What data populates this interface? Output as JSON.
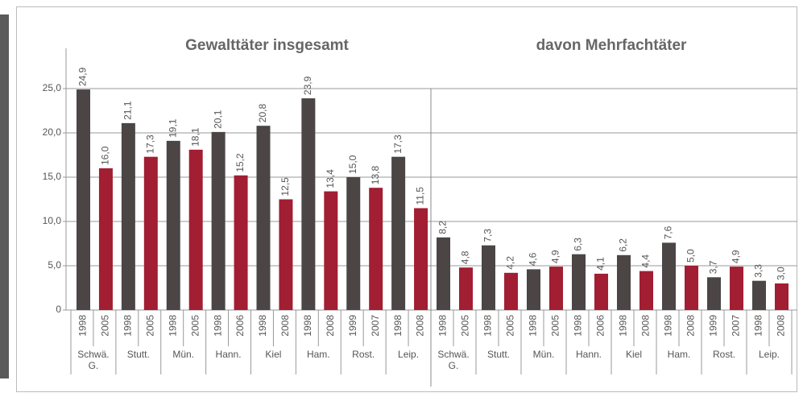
{
  "chart_data": {
    "type": "bar",
    "colors": [
      "#4b4546",
      "#a21e33"
    ],
    "ylim": [
      0,
      25
    ],
    "yticks": [
      {
        "value": 0,
        "label": "0"
      },
      {
        "value": 5,
        "label": "5,0"
      },
      {
        "value": 10,
        "label": "10,0"
      },
      {
        "value": 15,
        "label": "15,0"
      },
      {
        "value": 20,
        "label": "20,0"
      },
      {
        "value": 25,
        "label": "25,0"
      }
    ],
    "grid": true,
    "panels": [
      {
        "title": "Gewalttäter insgesamt",
        "groups": [
          {
            "label": "Schwä. G.",
            "years": [
              "1998",
              "2005"
            ],
            "values": [
              24.9,
              16.0
            ],
            "value_labels": [
              "24,9",
              "16,0"
            ]
          },
          {
            "label": "Stutt.",
            "years": [
              "1998",
              "2005"
            ],
            "values": [
              21.1,
              17.3
            ],
            "value_labels": [
              "21,1",
              "17,3"
            ]
          },
          {
            "label": "Mün.",
            "years": [
              "1998",
              "2005"
            ],
            "values": [
              19.1,
              18.1
            ],
            "value_labels": [
              "19,1",
              "18,1"
            ]
          },
          {
            "label": "Hann.",
            "years": [
              "1998",
              "2006"
            ],
            "values": [
              20.1,
              15.2
            ],
            "value_labels": [
              "20,1",
              "15,2"
            ]
          },
          {
            "label": "Kiel",
            "years": [
              "1998",
              "2008"
            ],
            "values": [
              20.8,
              12.5
            ],
            "value_labels": [
              "20,8",
              "12,5"
            ]
          },
          {
            "label": "Ham.",
            "years": [
              "1998",
              "2008"
            ],
            "values": [
              23.9,
              13.4
            ],
            "value_labels": [
              "23,9",
              "13,4"
            ]
          },
          {
            "label": "Rost.",
            "years": [
              "1999",
              "2007"
            ],
            "values": [
              15.0,
              13.8
            ],
            "value_labels": [
              "15,0",
              "13,8"
            ]
          },
          {
            "label": "Leip.",
            "years": [
              "1998",
              "2008"
            ],
            "values": [
              17.3,
              11.5
            ],
            "value_labels": [
              "17,3",
              "11,5"
            ]
          }
        ]
      },
      {
        "title": "davon Mehrfachtäter",
        "groups": [
          {
            "label": "Schwä. G.",
            "years": [
              "1998",
              "2005"
            ],
            "values": [
              8.2,
              4.8
            ],
            "value_labels": [
              "8,2",
              "4,8"
            ]
          },
          {
            "label": "Stutt.",
            "years": [
              "1998",
              "2005"
            ],
            "values": [
              7.3,
              4.2
            ],
            "value_labels": [
              "7,3",
              "4,2"
            ]
          },
          {
            "label": "Mün.",
            "years": [
              "1998",
              "2005"
            ],
            "values": [
              4.6,
              4.9
            ],
            "value_labels": [
              "4,6",
              "4,9"
            ]
          },
          {
            "label": "Hann.",
            "years": [
              "1998",
              "2006"
            ],
            "values": [
              6.3,
              4.1
            ],
            "value_labels": [
              "6,3",
              "4,1"
            ]
          },
          {
            "label": "Kiel",
            "years": [
              "1998",
              "2008"
            ],
            "values": [
              6.2,
              4.4
            ],
            "value_labels": [
              "6,2",
              "4,4"
            ]
          },
          {
            "label": "Ham.",
            "years": [
              "1998",
              "2008"
            ],
            "values": [
              7.6,
              5.0
            ],
            "value_labels": [
              "7,6",
              "5,0"
            ]
          },
          {
            "label": "Rost.",
            "years": [
              "1999",
              "2007"
            ],
            "values": [
              3.7,
              4.9
            ],
            "value_labels": [
              "3,7",
              "4,9"
            ]
          },
          {
            "label": "Leip.",
            "years": [
              "1998",
              "2008"
            ],
            "values": [
              3.3,
              3.0
            ],
            "value_labels": [
              "3,3",
              "3,0"
            ]
          }
        ]
      }
    ]
  }
}
